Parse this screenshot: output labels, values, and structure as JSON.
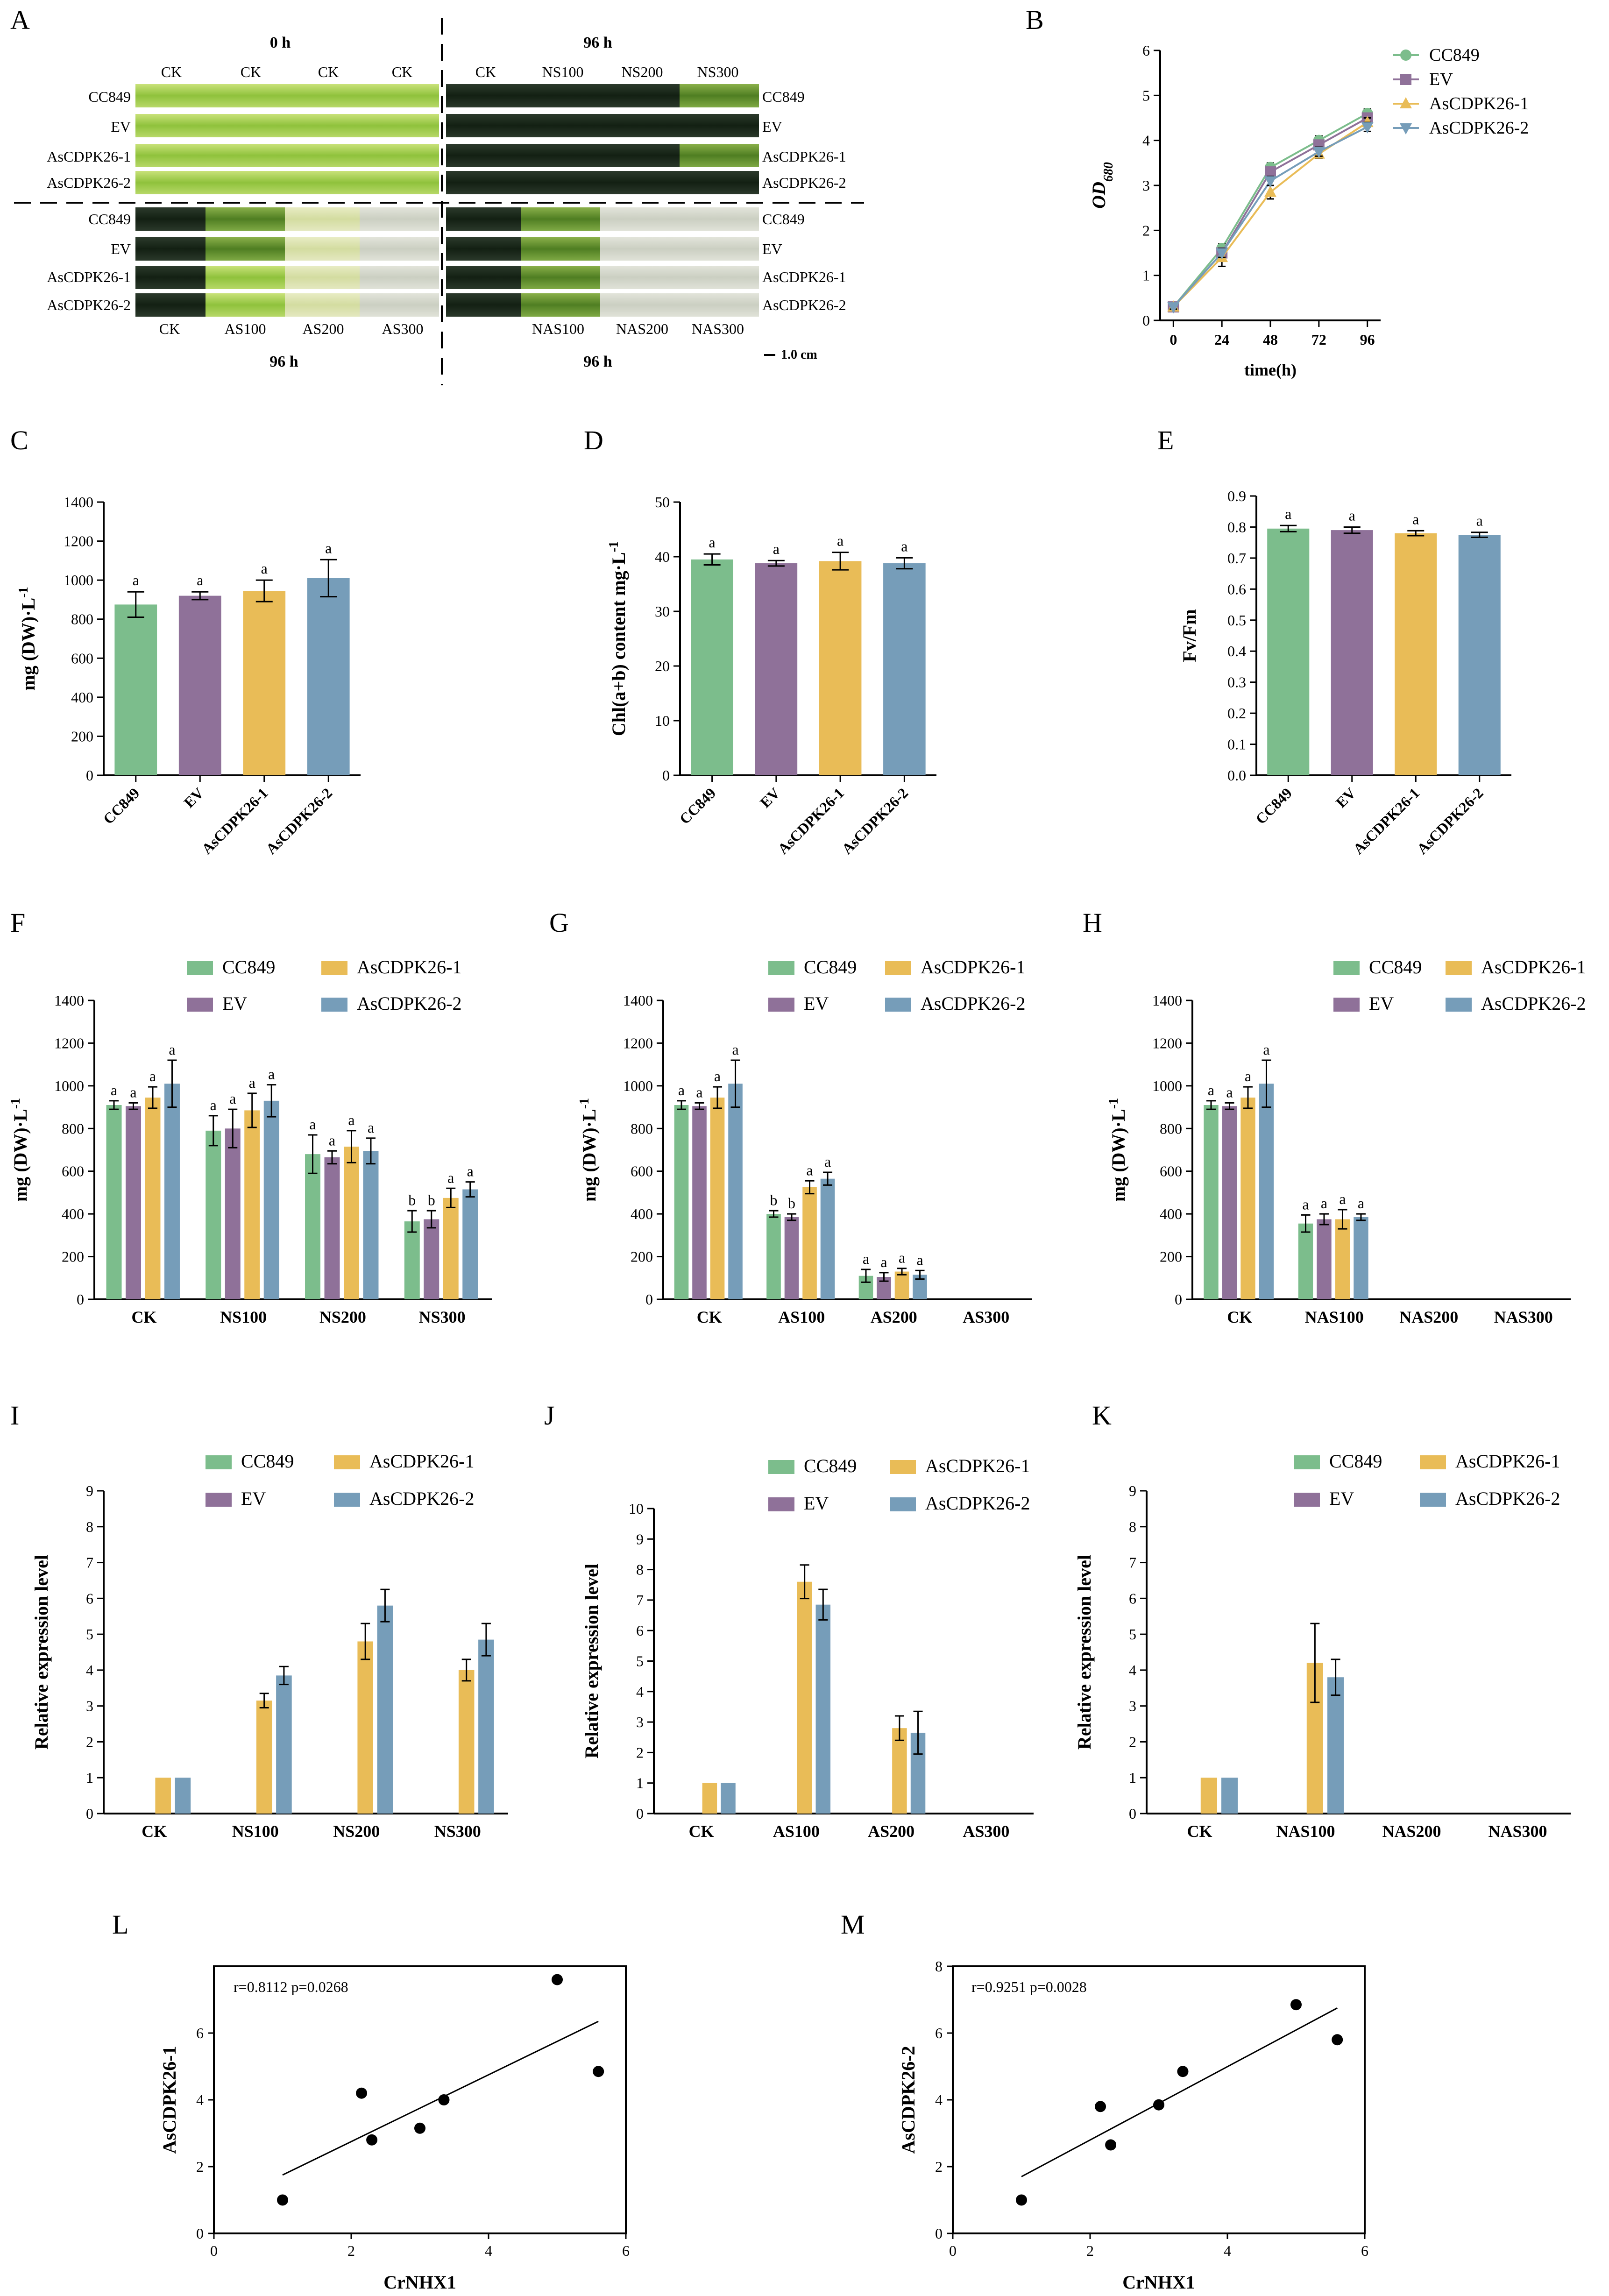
{
  "colors": {
    "CC849": "#7cbd8c",
    "EV": "#8f7199",
    "AsCDPK26-1": "#e9bc57",
    "AsCDPK26-2": "#769db9",
    "axis": "#000000",
    "grid": "none"
  },
  "series_names": [
    "CC849",
    "EV",
    "AsCDPK26-1",
    "AsCDPK26-2"
  ],
  "panelA": {
    "letter": "A",
    "header_left": "0 h",
    "header_right": "96 h",
    "footer_left": "96 h",
    "footer_right": "96 h",
    "scale_label": "1.0 cm",
    "top_left_cols": [
      "CK",
      "CK",
      "CK",
      "CK"
    ],
    "top_right_cols": [
      "CK",
      "NS100",
      "NS200",
      "NS300"
    ],
    "bottom_left_cols": [
      "CK",
      "AS100",
      "AS200",
      "AS300"
    ],
    "bottom_right_cols": [
      "NAS100",
      "NAS200",
      "NAS300"
    ],
    "rows_top": [
      "CC849",
      "EV",
      "AsCDPK26-1",
      "AsCDPK26-2"
    ],
    "rows_bottom": [
      "CC849",
      "EV",
      "AsCDPK26-1",
      "AsCDPK26-2"
    ]
  },
  "chart_data": [
    {
      "id": "B",
      "letter": "B",
      "type": "line",
      "x": [
        0,
        24,
        48,
        72,
        96
      ],
      "xlabel": "time(h)",
      "ylabel": "OD",
      "ylabel_sub": "680",
      "ylim": [
        0,
        6
      ],
      "yticks": [
        0,
        1,
        2,
        3,
        4,
        5,
        6
      ],
      "series": [
        {
          "name": "CC849",
          "values": [
            0.3,
            1.6,
            3.4,
            4.0,
            4.6
          ],
          "err": [
            0.05,
            0.1,
            0.1,
            0.1,
            0.1
          ],
          "marker": "circle"
        },
        {
          "name": "EV",
          "values": [
            0.3,
            1.5,
            3.3,
            3.9,
            4.5
          ],
          "err": [
            0.05,
            0.1,
            0.1,
            0.1,
            0.1
          ],
          "marker": "square"
        },
        {
          "name": "AsCDPK26-1",
          "values": [
            0.3,
            1.4,
            2.85,
            3.7,
            4.4
          ],
          "err": [
            0.05,
            0.2,
            0.15,
            0.1,
            0.1
          ],
          "marker": "triangle"
        },
        {
          "name": "AsCDPK26-2",
          "values": [
            0.3,
            1.5,
            3.1,
            3.75,
            4.3
          ],
          "err": [
            0.05,
            0.1,
            0.1,
            0.1,
            0.1
          ],
          "marker": "triangle-down"
        }
      ]
    },
    {
      "id": "C",
      "letter": "C",
      "type": "bar",
      "categories": [
        "CC849",
        "EV",
        "AsCDPK26-1",
        "AsCDPK26-2"
      ],
      "values": [
        875,
        920,
        945,
        1010
      ],
      "err": [
        65,
        20,
        55,
        95
      ],
      "sig": [
        "a",
        "a",
        "a",
        "a"
      ],
      "ylabel": "mg (DW)·L",
      "ylabel_sup": "-1",
      "ylim": [
        0,
        1400
      ],
      "yticks": [
        0,
        200,
        400,
        600,
        800,
        1000,
        1200,
        1400
      ]
    },
    {
      "id": "D",
      "letter": "D",
      "type": "bar",
      "categories": [
        "CC849",
        "EV",
        "AsCDPK26-1",
        "AsCDPK26-2"
      ],
      "values": [
        39.5,
        38.8,
        39.2,
        38.8
      ],
      "err": [
        1.0,
        0.5,
        1.6,
        1.0
      ],
      "sig": [
        "a",
        "a",
        "a",
        "a"
      ],
      "ylabel": "Chl(a+b) content mg·L",
      "ylabel_sup": "-1",
      "ylim": [
        0,
        50
      ],
      "yticks": [
        0,
        10,
        20,
        30,
        40,
        50
      ]
    },
    {
      "id": "E",
      "letter": "E",
      "type": "bar",
      "categories": [
        "CC849",
        "EV",
        "AsCDPK26-1",
        "AsCDPK26-2"
      ],
      "values": [
        0.795,
        0.79,
        0.78,
        0.775
      ],
      "err": [
        0.01,
        0.01,
        0.008,
        0.008
      ],
      "sig": [
        "a",
        "a",
        "a",
        "a"
      ],
      "ylabel": "Fv/Fm",
      "ylabel_sup": "",
      "ylim": [
        0,
        0.9
      ],
      "yticks": [
        0.0,
        0.1,
        0.2,
        0.3,
        0.4,
        0.5,
        0.6,
        0.7,
        0.8,
        0.9
      ]
    },
    {
      "id": "F",
      "letter": "F",
      "type": "bar",
      "categories": [
        "CK",
        "NS100",
        "NS200",
        "NS300"
      ],
      "ylabel": "mg (DW)·L",
      "ylabel_sup": "-1",
      "ylim": [
        0,
        1400
      ],
      "yticks": [
        0,
        200,
        400,
        600,
        800,
        1000,
        1200,
        1400
      ],
      "series": [
        {
          "name": "CC849",
          "values": [
            910,
            790,
            680,
            365
          ],
          "err": [
            20,
            70,
            90,
            50
          ],
          "sig": [
            "a",
            "a",
            "a",
            "b"
          ]
        },
        {
          "name": "EV",
          "values": [
            905,
            800,
            665,
            375
          ],
          "err": [
            15,
            90,
            30,
            40
          ],
          "sig": [
            "a",
            "a",
            "a",
            "b"
          ]
        },
        {
          "name": "AsCDPK26-1",
          "values": [
            945,
            885,
            715,
            475
          ],
          "err": [
            50,
            80,
            75,
            45
          ],
          "sig": [
            "a",
            "a",
            "a",
            "a"
          ]
        },
        {
          "name": "AsCDPK26-2",
          "values": [
            1010,
            930,
            695,
            515
          ],
          "err": [
            110,
            75,
            60,
            35
          ],
          "sig": [
            "a",
            "a",
            "a",
            "a"
          ]
        }
      ]
    },
    {
      "id": "G",
      "letter": "G",
      "type": "bar",
      "categories": [
        "CK",
        "AS100",
        "AS200",
        "AS300"
      ],
      "ylabel": "mg (DW)·L",
      "ylabel_sup": "-1",
      "ylim": [
        0,
        1400
      ],
      "yticks": [
        0,
        200,
        400,
        600,
        800,
        1000,
        1200,
        1400
      ],
      "series": [
        {
          "name": "CC849",
          "values": [
            910,
            400,
            110,
            0
          ],
          "err": [
            20,
            15,
            30,
            0
          ],
          "sig": [
            "a",
            "b",
            "a",
            ""
          ]
        },
        {
          "name": "EV",
          "values": [
            905,
            385,
            105,
            0
          ],
          "err": [
            15,
            15,
            20,
            0
          ],
          "sig": [
            "a",
            "b",
            "a",
            ""
          ]
        },
        {
          "name": "AsCDPK26-1",
          "values": [
            945,
            525,
            130,
            0
          ],
          "err": [
            50,
            30,
            15,
            0
          ],
          "sig": [
            "a",
            "a",
            "a",
            ""
          ]
        },
        {
          "name": "AsCDPK26-2",
          "values": [
            1010,
            565,
            115,
            0
          ],
          "err": [
            110,
            30,
            20,
            0
          ],
          "sig": [
            "a",
            "a",
            "a",
            ""
          ]
        }
      ]
    },
    {
      "id": "H",
      "letter": "H",
      "type": "bar",
      "categories": [
        "CK",
        "NAS100",
        "NAS200",
        "NAS300"
      ],
      "ylabel": "mg (DW)·L",
      "ylabel_sup": "-1",
      "ylim": [
        0,
        1400
      ],
      "yticks": [
        0,
        200,
        400,
        600,
        800,
        1000,
        1200,
        1400
      ],
      "series": [
        {
          "name": "CC849",
          "values": [
            910,
            355,
            0,
            0
          ],
          "err": [
            20,
            40,
            0,
            0
          ],
          "sig": [
            "a",
            "a",
            "",
            ""
          ]
        },
        {
          "name": "EV",
          "values": [
            905,
            375,
            0,
            0
          ],
          "err": [
            15,
            25,
            0,
            0
          ],
          "sig": [
            "a",
            "a",
            "",
            ""
          ]
        },
        {
          "name": "AsCDPK26-1",
          "values": [
            945,
            375,
            0,
            0
          ],
          "err": [
            50,
            45,
            0,
            0
          ],
          "sig": [
            "a",
            "a",
            "",
            ""
          ]
        },
        {
          "name": "AsCDPK26-2",
          "values": [
            1010,
            385,
            0,
            0
          ],
          "err": [
            110,
            15,
            0,
            0
          ],
          "sig": [
            "a",
            "a",
            "",
            ""
          ]
        }
      ]
    },
    {
      "id": "I",
      "letter": "I",
      "type": "bar",
      "categories": [
        "CK",
        "NS100",
        "NS200",
        "NS300"
      ],
      "ylabel": "Relative expression level",
      "ylabel_sup": "",
      "ylim": [
        0,
        9
      ],
      "yticks": [
        0,
        1,
        2,
        3,
        4,
        5,
        6,
        7,
        8,
        9
      ],
      "series": [
        {
          "name": "CC849",
          "values": [
            0,
            0,
            0,
            0
          ],
          "err": [
            0,
            0,
            0,
            0
          ]
        },
        {
          "name": "EV",
          "values": [
            0,
            0,
            0,
            0
          ],
          "err": [
            0,
            0,
            0,
            0
          ]
        },
        {
          "name": "AsCDPK26-1",
          "values": [
            1,
            3.15,
            4.8,
            4.0
          ],
          "err": [
            0,
            0.2,
            0.5,
            0.3
          ]
        },
        {
          "name": "AsCDPK26-2",
          "values": [
            1,
            3.85,
            5.8,
            4.85
          ],
          "err": [
            0,
            0.25,
            0.45,
            0.45
          ]
        }
      ]
    },
    {
      "id": "J",
      "letter": "J",
      "type": "bar",
      "categories": [
        "CK",
        "AS100",
        "AS200",
        "AS300"
      ],
      "ylabel": "Relative expression level",
      "ylabel_sup": "",
      "ylim": [
        0,
        10
      ],
      "yticks": [
        0,
        1,
        2,
        3,
        4,
        5,
        6,
        7,
        8,
        9,
        10
      ],
      "series": [
        {
          "name": "CC849",
          "values": [
            0,
            0,
            0,
            0
          ],
          "err": [
            0,
            0,
            0,
            0
          ]
        },
        {
          "name": "EV",
          "values": [
            0,
            0,
            0,
            0
          ],
          "err": [
            0,
            0,
            0,
            0
          ]
        },
        {
          "name": "AsCDPK26-1",
          "values": [
            1,
            7.6,
            2.8,
            0
          ],
          "err": [
            0,
            0.55,
            0.4,
            0
          ]
        },
        {
          "name": "AsCDPK26-2",
          "values": [
            1,
            6.85,
            2.65,
            0
          ],
          "err": [
            0,
            0.5,
            0.7,
            0
          ]
        }
      ]
    },
    {
      "id": "K",
      "letter": "K",
      "type": "bar",
      "categories": [
        "CK",
        "NAS100",
        "NAS200",
        "NAS300"
      ],
      "ylabel": "Relative expression level",
      "ylabel_sup": "",
      "ylim": [
        0,
        9
      ],
      "yticks": [
        0,
        1,
        2,
        3,
        4,
        5,
        6,
        7,
        8,
        9
      ],
      "series": [
        {
          "name": "CC849",
          "values": [
            0,
            0,
            0,
            0
          ],
          "err": [
            0,
            0,
            0,
            0
          ]
        },
        {
          "name": "EV",
          "values": [
            0,
            0,
            0,
            0
          ],
          "err": [
            0,
            0,
            0,
            0
          ]
        },
        {
          "name": "AsCDPK26-1",
          "values": [
            1,
            4.2,
            0,
            0
          ],
          "err": [
            0,
            1.1,
            0,
            0
          ]
        },
        {
          "name": "AsCDPK26-2",
          "values": [
            1,
            3.8,
            0,
            0
          ],
          "err": [
            0,
            0.5,
            0,
            0
          ]
        }
      ]
    },
    {
      "id": "L",
      "letter": "L",
      "type": "scatter",
      "xlabel": "CrNHX1",
      "ylabel": "AsCDPK26-1",
      "annotation": "r=0.8112  p=0.0268",
      "xlim": [
        0,
        6
      ],
      "ylim": [
        0,
        8
      ],
      "xticks": [
        0,
        2,
        4,
        6
      ],
      "yticks": [
        0,
        2,
        4,
        6
      ],
      "x": [
        1.0,
        2.15,
        2.3,
        3.0,
        3.35,
        5.0,
        5.6
      ],
      "y": [
        1.0,
        4.2,
        2.8,
        3.15,
        4.0,
        7.6,
        4.85
      ],
      "fit": [
        [
          1.0,
          1.75
        ],
        [
          5.6,
          6.35
        ]
      ]
    },
    {
      "id": "M",
      "letter": "M",
      "type": "scatter",
      "xlabel": "CrNHX1",
      "ylabel": "AsCDPK26-2",
      "annotation": "r=0.9251  p=0.0028",
      "xlim": [
        0,
        6
      ],
      "ylim": [
        0,
        8
      ],
      "xticks": [
        0,
        2,
        4,
        6
      ],
      "yticks": [
        0,
        2,
        4,
        6,
        8
      ],
      "x": [
        1.0,
        2.15,
        2.3,
        3.0,
        3.35,
        5.0,
        5.6
      ],
      "y": [
        1.0,
        3.8,
        2.65,
        3.85,
        4.85,
        6.85,
        5.8
      ],
      "fit": [
        [
          1.0,
          1.7
        ],
        [
          5.6,
          6.75
        ]
      ]
    }
  ]
}
